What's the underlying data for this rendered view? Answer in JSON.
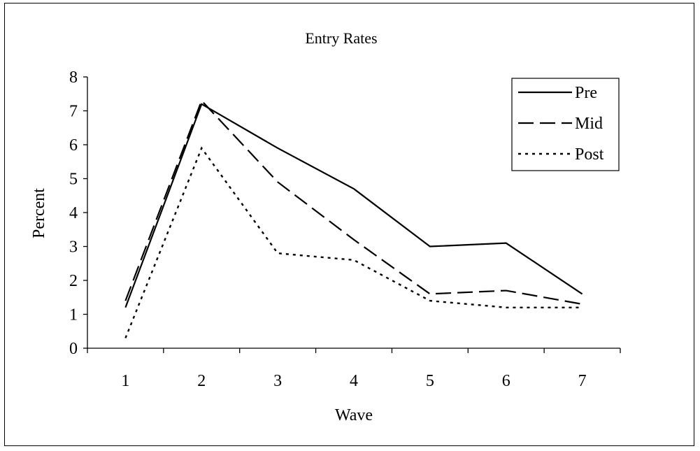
{
  "chart_data": {
    "type": "line",
    "title": "Entry Rates",
    "xlabel": "Wave",
    "ylabel": "Percent",
    "categories": [
      "1",
      "2",
      "3",
      "4",
      "5",
      "6",
      "7"
    ],
    "ylim": [
      0,
      8
    ],
    "yticks": [
      "0",
      "1",
      "2",
      "3",
      "4",
      "5",
      "6",
      "7",
      "8"
    ],
    "grid": false,
    "legend_position": "top-right",
    "series": [
      {
        "name": "Pre",
        "style": "solid",
        "values": [
          1.2,
          7.2,
          5.9,
          4.7,
          3.0,
          3.1,
          1.6
        ]
      },
      {
        "name": "Mid",
        "style": "dashed",
        "values": [
          1.4,
          7.3,
          4.9,
          3.2,
          1.6,
          1.7,
          1.3
        ]
      },
      {
        "name": "Post",
        "style": "dotted",
        "values": [
          0.3,
          5.9,
          2.8,
          2.6,
          1.4,
          1.2,
          1.2
        ]
      }
    ],
    "line_color": "#000000"
  }
}
